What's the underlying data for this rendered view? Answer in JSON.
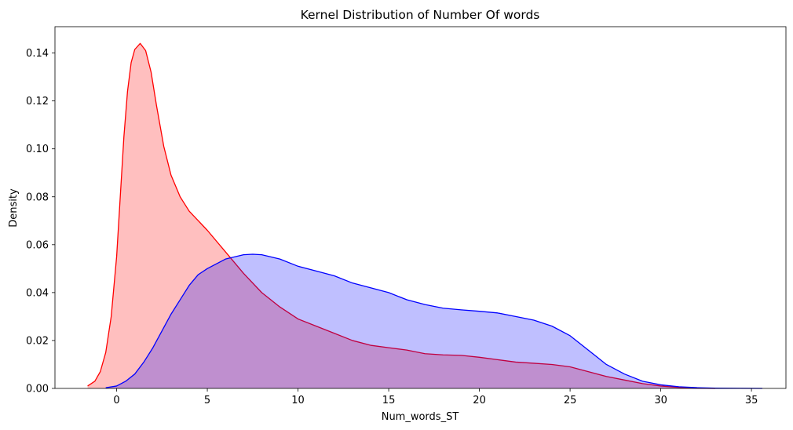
{
  "chart_data": {
    "type": "area",
    "title": "Kernel Distribution of Number Of words",
    "xlabel": "Num_words_ST",
    "ylabel": "Density",
    "xlim": [
      -3.4,
      36.9
    ],
    "ylim": [
      0,
      0.151
    ],
    "xticks": [
      0,
      5,
      10,
      15,
      20,
      25,
      30,
      35
    ],
    "yticks": [
      0.0,
      0.02,
      0.04,
      0.06,
      0.08,
      0.1,
      0.12,
      0.14
    ],
    "ytick_labels": [
      "0.00",
      "0.02",
      "0.04",
      "0.06",
      "0.08",
      "0.10",
      "0.12",
      "0.14"
    ],
    "grid": false,
    "series": [
      {
        "color": "#ff0000",
        "fill": "rgba(255,0,0,0.25)",
        "points": [
          [
            -1.6,
            0.001
          ],
          [
            -1.2,
            0.003
          ],
          [
            -0.9,
            0.007
          ],
          [
            -0.6,
            0.015
          ],
          [
            -0.3,
            0.03
          ],
          [
            0.0,
            0.055
          ],
          [
            0.2,
            0.08
          ],
          [
            0.4,
            0.105
          ],
          [
            0.6,
            0.124
          ],
          [
            0.8,
            0.136
          ],
          [
            1.0,
            0.1415
          ],
          [
            1.3,
            0.144
          ],
          [
            1.6,
            0.141
          ],
          [
            1.9,
            0.132
          ],
          [
            2.2,
            0.118
          ],
          [
            2.6,
            0.101
          ],
          [
            3.0,
            0.089
          ],
          [
            3.5,
            0.08
          ],
          [
            4.0,
            0.074
          ],
          [
            5.0,
            0.066
          ],
          [
            6.0,
            0.057
          ],
          [
            7.0,
            0.048
          ],
          [
            8.0,
            0.04
          ],
          [
            9.0,
            0.034
          ],
          [
            10.0,
            0.029
          ],
          [
            11.0,
            0.026
          ],
          [
            12.0,
            0.023
          ],
          [
            13.0,
            0.02
          ],
          [
            14.0,
            0.018
          ],
          [
            15.0,
            0.017
          ],
          [
            16.0,
            0.016
          ],
          [
            17.0,
            0.0145
          ],
          [
            18.0,
            0.014
          ],
          [
            19.0,
            0.0138
          ],
          [
            20.0,
            0.013
          ],
          [
            21.0,
            0.012
          ],
          [
            22.0,
            0.011
          ],
          [
            23.0,
            0.0105
          ],
          [
            24.0,
            0.01
          ],
          [
            25.0,
            0.009
          ],
          [
            26.0,
            0.007
          ],
          [
            27.0,
            0.005
          ],
          [
            28.0,
            0.0035
          ],
          [
            29.0,
            0.002
          ],
          [
            30.0,
            0.001
          ],
          [
            31.0,
            0.0004
          ],
          [
            32.0,
            0.0001
          ],
          [
            33.0,
            0.0
          ]
        ]
      },
      {
        "color": "#0000ff",
        "fill": "rgba(0,0,255,0.25)",
        "points": [
          [
            -0.6,
            0.0003
          ],
          [
            0.0,
            0.001
          ],
          [
            0.5,
            0.003
          ],
          [
            1.0,
            0.006
          ],
          [
            1.5,
            0.011
          ],
          [
            2.0,
            0.017
          ],
          [
            2.5,
            0.024
          ],
          [
            3.0,
            0.031
          ],
          [
            3.5,
            0.037
          ],
          [
            4.0,
            0.043
          ],
          [
            4.5,
            0.0475
          ],
          [
            5.0,
            0.05
          ],
          [
            6.0,
            0.054
          ],
          [
            7.0,
            0.0558
          ],
          [
            7.5,
            0.056
          ],
          [
            8.0,
            0.0558
          ],
          [
            9.0,
            0.054
          ],
          [
            10.0,
            0.051
          ],
          [
            11.0,
            0.049
          ],
          [
            12.0,
            0.047
          ],
          [
            13.0,
            0.044
          ],
          [
            14.0,
            0.042
          ],
          [
            15.0,
            0.04
          ],
          [
            16.0,
            0.037
          ],
          [
            17.0,
            0.035
          ],
          [
            18.0,
            0.0335
          ],
          [
            19.0,
            0.0328
          ],
          [
            20.0,
            0.0322
          ],
          [
            21.0,
            0.0315
          ],
          [
            22.0,
            0.03
          ],
          [
            23.0,
            0.0285
          ],
          [
            24.0,
            0.026
          ],
          [
            25.0,
            0.022
          ],
          [
            26.0,
            0.016
          ],
          [
            27.0,
            0.01
          ],
          [
            28.0,
            0.006
          ],
          [
            29.0,
            0.003
          ],
          [
            30.0,
            0.0015
          ],
          [
            31.0,
            0.0007
          ],
          [
            32.0,
            0.0003
          ],
          [
            33.0,
            0.0001
          ],
          [
            35.6,
            0.0
          ]
        ]
      }
    ]
  }
}
